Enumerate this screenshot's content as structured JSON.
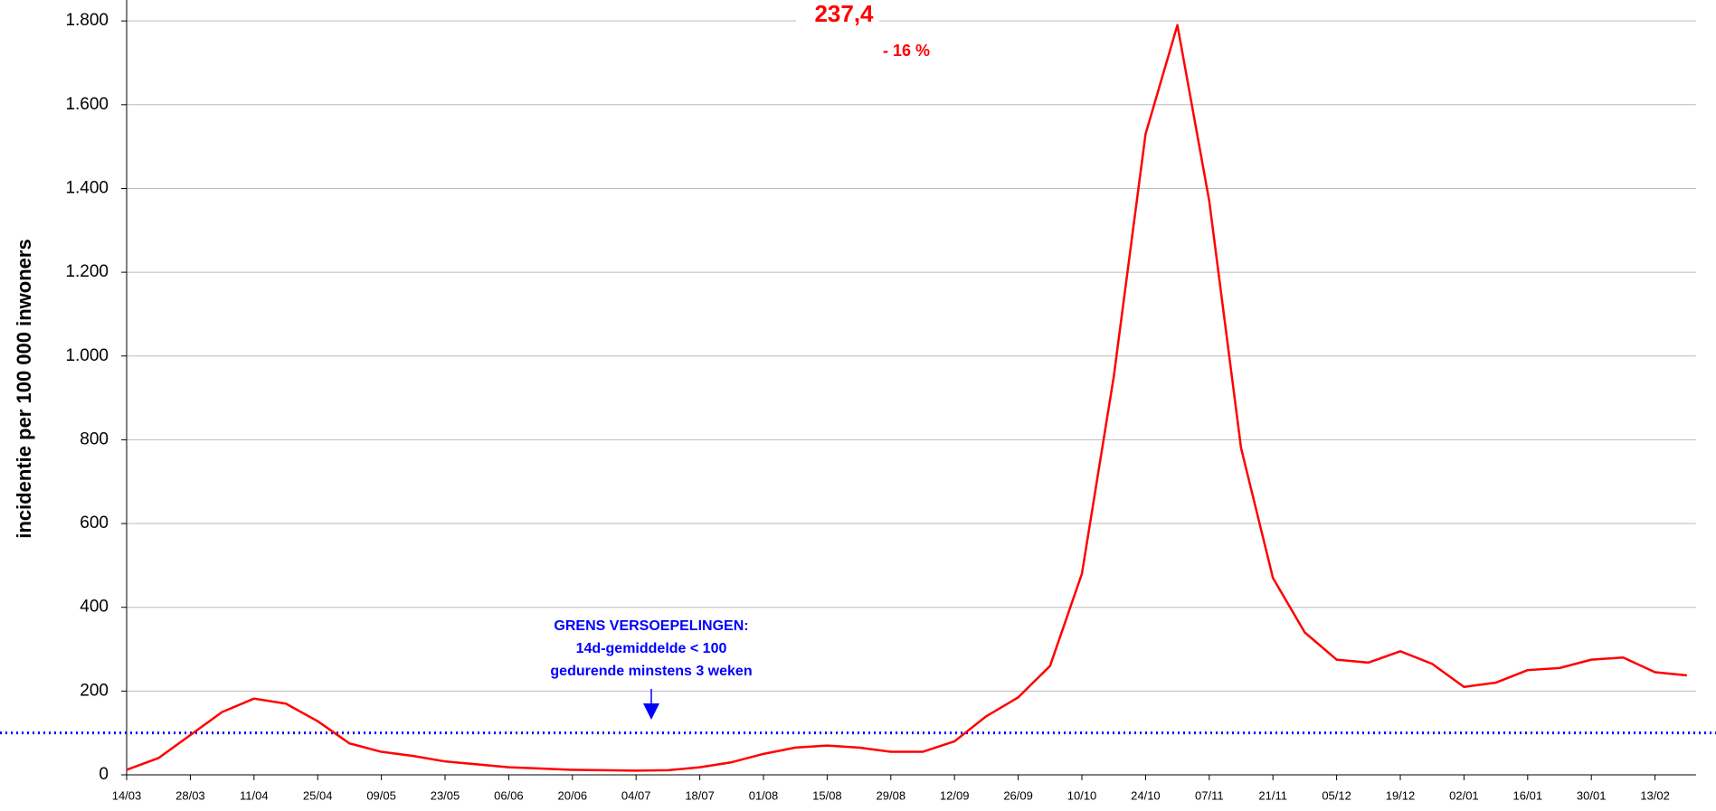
{
  "chart_data": {
    "type": "line",
    "y_label": "incidentie per 100 000 inwoners",
    "categories": [
      "14/03",
      null,
      "28/03",
      null,
      "11/04",
      null,
      "25/04",
      null,
      "09/05",
      null,
      "23/05",
      null,
      "06/06",
      null,
      "20/06",
      null,
      "04/07",
      null,
      "18/07",
      null,
      "01/08",
      null,
      "15/08",
      null,
      "29/08",
      null,
      "12/09",
      null,
      "26/09",
      null,
      "10/10",
      null,
      "24/10",
      null,
      "07/11",
      null,
      "21/11",
      null,
      "05/12",
      null,
      "19/12",
      null,
      "02/01",
      null,
      "16/01",
      null,
      "30/01",
      null,
      "13/02",
      null
    ],
    "series": [
      {
        "color": "#ff0000",
        "values": [
          12,
          40,
          95,
          150,
          182,
          170,
          128,
          75,
          55,
          45,
          32,
          25,
          18,
          15,
          12,
          11,
          10,
          11,
          18,
          30,
          50,
          65,
          70,
          65,
          55,
          55,
          80,
          140,
          185,
          260,
          480,
          950,
          1530,
          1790,
          1370,
          780,
          470,
          340,
          275,
          268,
          295,
          265,
          210,
          220,
          250,
          255,
          275,
          280,
          245,
          237.4
        ],
        "value_labels": [
          null,
          null,
          null,
          null,
          null,
          null,
          null,
          null,
          null,
          null,
          null,
          null,
          null,
          null,
          null,
          null,
          null,
          null,
          null,
          null,
          null,
          null,
          null,
          null,
          null,
          null,
          null,
          null,
          null,
          null,
          null,
          null,
          null,
          null,
          null,
          null,
          null,
          null,
          null,
          null,
          null,
          null,
          null,
          null,
          null,
          null,
          null,
          null,
          null,
          "237,4"
        ]
      }
    ],
    "ylim": [
      0,
      1850
    ],
    "yticks": [
      0,
      200,
      400,
      600,
      800,
      {
        "value": 1000,
        "label": "1.000"
      },
      {
        "value": 1200,
        "label": "1.200"
      },
      {
        "value": 1400,
        "label": "1.400"
      },
      {
        "value": 1600,
        "label": "1.600"
      },
      {
        "value": 1800,
        "label": "1.800"
      }
    ],
    "grid": true,
    "change_label": "- 16 %",
    "threshold": {
      "value": 100,
      "color": "#0000ff",
      "lines": [
        "GRENS VERSOEPELINGEN:",
        "14d-gemiddelde < 100",
        "gedurende minstens 3 weken"
      ]
    }
  }
}
